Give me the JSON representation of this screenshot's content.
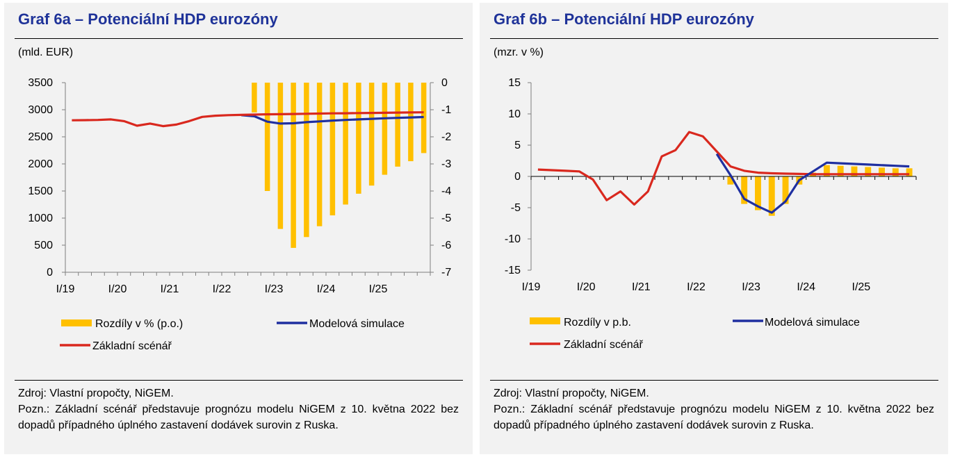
{
  "panels": [
    {
      "title": "Graf 6a – Potenciální HDP eurozóny",
      "unit": "(mld. EUR)",
      "source": "Zdroj: Vlastní propočty, NiGEM.",
      "note": "Pozn.: Základní scénář představuje prognózu modelu NiGEM z 10. května 2022 bez dopadů případného úplného zastavení dodávek surovin z Ruska."
    },
    {
      "title": "Graf 6b – Potenciální HDP eurozóny",
      "unit": "(mzr. v %)",
      "source": "Zdroj: Vlastní propočty, NiGEM.",
      "note": "Pozn.: Základní scénář představuje prognózu modelu NiGEM z 10. května 2022 bez dopadů případného úplného zastavení dodávek surovin z Ruska."
    }
  ],
  "chart_data": [
    {
      "type": "bar+line",
      "xlabels": [
        "I/19",
        "I/20",
        "I/21",
        "I/22",
        "I/23",
        "I/24",
        "I/25"
      ],
      "quarters_start": "I/19",
      "yleft": {
        "lim": [
          0,
          3500
        ],
        "ticks": [
          0,
          500,
          1000,
          1500,
          2000,
          2500,
          3000,
          3500
        ]
      },
      "yright": {
        "lim": [
          -7,
          0
        ],
        "ticks": [
          0,
          -1,
          -2,
          -3,
          -4,
          -5,
          -6,
          -7
        ]
      },
      "legend": [
        "Rozdíly v % (p.o.)",
        "Modelová simulace",
        "Základní scénář"
      ],
      "colors": {
        "bars": "#ffc000",
        "simulation": "#1f2fa0",
        "baseline": "#d9281e"
      },
      "baseline": [
        2805,
        2808,
        2812,
        2822,
        2790,
        2705,
        2745,
        2698,
        2725,
        2790,
        2868,
        2890,
        2900,
        2905,
        2910,
        2915,
        2918,
        2922,
        2925,
        2930,
        2933,
        2935,
        2938,
        2941,
        2944,
        2947,
        2950,
        2953
      ],
      "simulation": [
        null,
        null,
        null,
        null,
        null,
        null,
        null,
        null,
        null,
        null,
        null,
        null,
        null,
        2900,
        2880,
        2780,
        2745,
        2750,
        2770,
        2785,
        2800,
        2812,
        2822,
        2832,
        2842,
        2850,
        2858,
        2865
      ],
      "bars_pct": [
        null,
        null,
        null,
        null,
        null,
        null,
        null,
        null,
        null,
        null,
        null,
        null,
        null,
        null,
        -1.1,
        -4.0,
        -5.4,
        -6.1,
        -5.7,
        -5.3,
        -4.9,
        -4.5,
        -4.1,
        -3.8,
        -3.4,
        -3.1,
        -2.9,
        -2.6
      ]
    },
    {
      "type": "bar+line",
      "xlabels": [
        "I/19",
        "I/20",
        "I/21",
        "I/22",
        "I/23",
        "I/24",
        "I/25"
      ],
      "quarters_start": "I/19",
      "ylim": [
        -15,
        15
      ],
      "yticks": [
        15,
        10,
        5,
        0,
        -5,
        -10,
        -15
      ],
      "legend": [
        "Rozdíly v p.b.",
        "Modelová simulace",
        "Základní scénář"
      ],
      "colors": {
        "bars": "#ffc000",
        "simulation": "#1f2fa0",
        "baseline": "#d9281e"
      },
      "baseline": [
        1.1,
        1.0,
        0.9,
        0.8,
        -0.5,
        -3.8,
        -2.4,
        -4.5,
        -2.4,
        3.2,
        4.2,
        7.1,
        6.4,
        4.0,
        1.6,
        0.9,
        0.6,
        0.5,
        0.45,
        0.4,
        0.35,
        0.35,
        0.35,
        0.35,
        0.35,
        0.35,
        0.35,
        0.35
      ],
      "simulation": [
        null,
        null,
        null,
        null,
        null,
        null,
        null,
        null,
        null,
        null,
        null,
        null,
        null,
        3.6,
        0.2,
        -3.6,
        -4.8,
        -5.8,
        -4.0,
        -0.6,
        0.8,
        2.2,
        2.1,
        2.0,
        1.9,
        1.8,
        1.7,
        1.6
      ],
      "bars_pp": [
        null,
        null,
        null,
        null,
        null,
        null,
        null,
        null,
        null,
        null,
        null,
        null,
        null,
        null,
        -1.3,
        -4.4,
        -5.4,
        -6.3,
        -4.4,
        -1.3,
        0.6,
        1.8,
        1.7,
        1.6,
        1.5,
        1.4,
        1.3,
        1.3
      ]
    }
  ]
}
